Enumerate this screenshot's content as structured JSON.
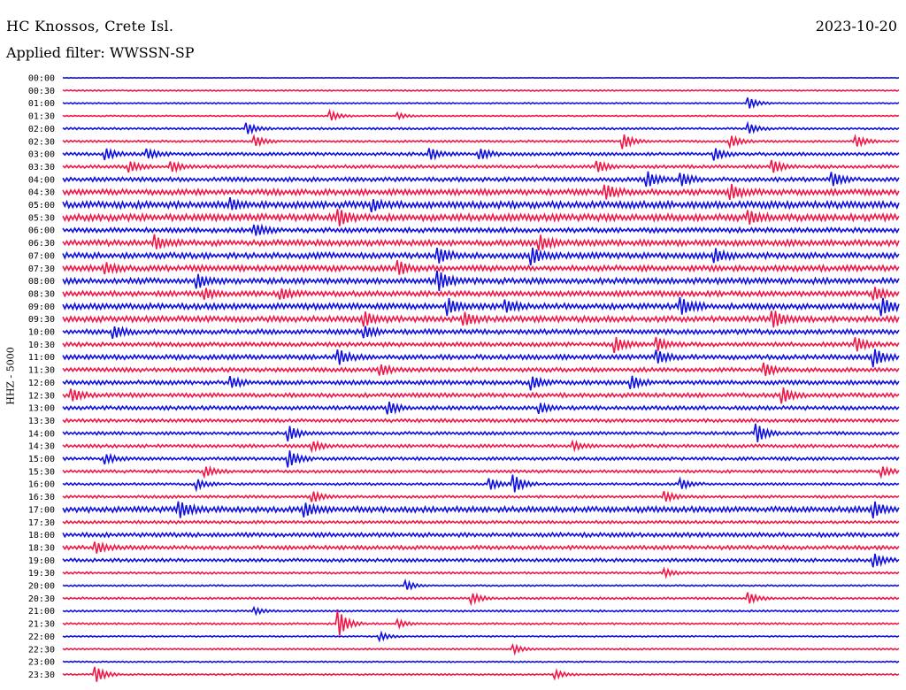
{
  "header": {
    "station": "HC Knossos, Crete Isl.",
    "date": "2023-10-20",
    "filter": "Applied filter: WWSSN-SP"
  },
  "colors": {
    "even_line": "#1010e0",
    "odd_line": "#f01848"
  },
  "chart_data": {
    "type": "line",
    "title": "HC Knossos, Crete Isl.",
    "ylabel": "HHZ - 5000",
    "xlabel": "",
    "grid": false,
    "row_labels": [
      "00:00",
      "00:30",
      "01:00",
      "01:30",
      "02:00",
      "02:30",
      "03:00",
      "03:30",
      "04:00",
      "04:30",
      "05:00",
      "05:30",
      "06:00",
      "06:30",
      "07:00",
      "07:30",
      "08:00",
      "08:30",
      "09:00",
      "09:30",
      "10:00",
      "10:30",
      "11:00",
      "11:30",
      "12:00",
      "12:30",
      "13:00",
      "13:30",
      "14:00",
      "14:30",
      "15:00",
      "15:30",
      "16:00",
      "16:30",
      "17:00",
      "17:30",
      "18:00",
      "18:30",
      "19:00",
      "19:30",
      "20:00",
      "20:30",
      "21:00",
      "21:30",
      "22:00",
      "22:30",
      "23:00",
      "23:30"
    ],
    "row_noise": [
      0.2,
      0.5,
      0.5,
      0.5,
      0.8,
      0.8,
      1.2,
      1.2,
      1.6,
      2.2,
      2.6,
      2.6,
      1.8,
      2.2,
      2.2,
      2.2,
      2.2,
      2.0,
      2.2,
      2.2,
      1.8,
      1.6,
      1.8,
      1.6,
      1.6,
      1.6,
      1.5,
      1.3,
      1.2,
      1.2,
      1.2,
      1.1,
      0.9,
      1.0,
      2.2,
      1.1,
      1.6,
      1.5,
      1.3,
      0.8,
      0.6,
      0.8,
      0.7,
      0.7,
      0.5,
      0.6,
      0.5,
      0.6
    ],
    "events": [
      {
        "row": 2,
        "t": 0.82,
        "amp": 6
      },
      {
        "row": 3,
        "t": 0.32,
        "amp": 5
      },
      {
        "row": 3,
        "t": 0.4,
        "amp": 3
      },
      {
        "row": 4,
        "t": 0.22,
        "amp": 6
      },
      {
        "row": 4,
        "t": 0.82,
        "amp": 5
      },
      {
        "row": 5,
        "t": 0.23,
        "amp": 5
      },
      {
        "row": 5,
        "t": 0.67,
        "amp": 8
      },
      {
        "row": 5,
        "t": 0.8,
        "amp": 5
      },
      {
        "row": 5,
        "t": 0.95,
        "amp": 5
      },
      {
        "row": 6,
        "t": 0.05,
        "amp": 6
      },
      {
        "row": 6,
        "t": 0.1,
        "amp": 5
      },
      {
        "row": 6,
        "t": 0.44,
        "amp": 5
      },
      {
        "row": 6,
        "t": 0.5,
        "amp": 5
      },
      {
        "row": 6,
        "t": 0.78,
        "amp": 6
      },
      {
        "row": 7,
        "t": 0.08,
        "amp": 5
      },
      {
        "row": 7,
        "t": 0.13,
        "amp": 5
      },
      {
        "row": 7,
        "t": 0.64,
        "amp": 5
      },
      {
        "row": 7,
        "t": 0.85,
        "amp": 6
      },
      {
        "row": 8,
        "t": 0.7,
        "amp": 7
      },
      {
        "row": 8,
        "t": 0.74,
        "amp": 6
      },
      {
        "row": 8,
        "t": 0.92,
        "amp": 7
      },
      {
        "row": 9,
        "t": 0.65,
        "amp": 6
      },
      {
        "row": 9,
        "t": 0.8,
        "amp": 7
      },
      {
        "row": 10,
        "t": 0.2,
        "amp": 5
      },
      {
        "row": 10,
        "t": 0.37,
        "amp": 5
      },
      {
        "row": 11,
        "t": 0.33,
        "amp": 7
      },
      {
        "row": 11,
        "t": 0.82,
        "amp": 6
      },
      {
        "row": 12,
        "t": 0.23,
        "amp": 5
      },
      {
        "row": 13,
        "t": 0.11,
        "amp": 7
      },
      {
        "row": 13,
        "t": 0.57,
        "amp": 7
      },
      {
        "row": 14,
        "t": 0.45,
        "amp": 7
      },
      {
        "row": 14,
        "t": 0.56,
        "amp": 8
      },
      {
        "row": 14,
        "t": 0.78,
        "amp": 6
      },
      {
        "row": 15,
        "t": 0.05,
        "amp": 5
      },
      {
        "row": 15,
        "t": 0.4,
        "amp": 7
      },
      {
        "row": 16,
        "t": 0.16,
        "amp": 7
      },
      {
        "row": 16,
        "t": 0.45,
        "amp": 9
      },
      {
        "row": 17,
        "t": 0.17,
        "amp": 5
      },
      {
        "row": 17,
        "t": 0.26,
        "amp": 5
      },
      {
        "row": 17,
        "t": 0.97,
        "amp": 6
      },
      {
        "row": 18,
        "t": 0.46,
        "amp": 8
      },
      {
        "row": 18,
        "t": 0.53,
        "amp": 6
      },
      {
        "row": 18,
        "t": 0.74,
        "amp": 8
      },
      {
        "row": 18,
        "t": 0.98,
        "amp": 8
      },
      {
        "row": 19,
        "t": 0.36,
        "amp": 7
      },
      {
        "row": 19,
        "t": 0.48,
        "amp": 6
      },
      {
        "row": 19,
        "t": 0.85,
        "amp": 8
      },
      {
        "row": 20,
        "t": 0.06,
        "amp": 6
      },
      {
        "row": 20,
        "t": 0.36,
        "amp": 6
      },
      {
        "row": 21,
        "t": 0.66,
        "amp": 8
      },
      {
        "row": 21,
        "t": 0.71,
        "amp": 7
      },
      {
        "row": 21,
        "t": 0.95,
        "amp": 6
      },
      {
        "row": 22,
        "t": 0.33,
        "amp": 7
      },
      {
        "row": 22,
        "t": 0.71,
        "amp": 7
      },
      {
        "row": 22,
        "t": 0.97,
        "amp": 9
      },
      {
        "row": 23,
        "t": 0.38,
        "amp": 5
      },
      {
        "row": 23,
        "t": 0.84,
        "amp": 6
      },
      {
        "row": 24,
        "t": 0.2,
        "amp": 6
      },
      {
        "row": 24,
        "t": 0.56,
        "amp": 7
      },
      {
        "row": 24,
        "t": 0.68,
        "amp": 6
      },
      {
        "row": 25,
        "t": 0.01,
        "amp": 6
      },
      {
        "row": 25,
        "t": 0.86,
        "amp": 8
      },
      {
        "row": 26,
        "t": 0.39,
        "amp": 6
      },
      {
        "row": 26,
        "t": 0.57,
        "amp": 5
      },
      {
        "row": 28,
        "t": 0.27,
        "amp": 8
      },
      {
        "row": 28,
        "t": 0.83,
        "amp": 10
      },
      {
        "row": 29,
        "t": 0.3,
        "amp": 4
      },
      {
        "row": 29,
        "t": 0.61,
        "amp": 4
      },
      {
        "row": 30,
        "t": 0.05,
        "amp": 5
      },
      {
        "row": 30,
        "t": 0.27,
        "amp": 9
      },
      {
        "row": 31,
        "t": 0.17,
        "amp": 5
      },
      {
        "row": 31,
        "t": 0.98,
        "amp": 5
      },
      {
        "row": 32,
        "t": 0.16,
        "amp": 5
      },
      {
        "row": 32,
        "t": 0.51,
        "amp": 6
      },
      {
        "row": 32,
        "t": 0.54,
        "amp": 9
      },
      {
        "row": 32,
        "t": 0.74,
        "amp": 5
      },
      {
        "row": 33,
        "t": 0.3,
        "amp": 5
      },
      {
        "row": 33,
        "t": 0.72,
        "amp": 5
      },
      {
        "row": 34,
        "t": 0.14,
        "amp": 7
      },
      {
        "row": 34,
        "t": 0.29,
        "amp": 6
      },
      {
        "row": 34,
        "t": 0.97,
        "amp": 7
      },
      {
        "row": 37,
        "t": 0.04,
        "amp": 5
      },
      {
        "row": 38,
        "t": 0.97,
        "amp": 7
      },
      {
        "row": 39,
        "t": 0.72,
        "amp": 4
      },
      {
        "row": 40,
        "t": 0.41,
        "amp": 5
      },
      {
        "row": 41,
        "t": 0.49,
        "amp": 5
      },
      {
        "row": 41,
        "t": 0.82,
        "amp": 6
      },
      {
        "row": 42,
        "t": 0.23,
        "amp": 3
      },
      {
        "row": 43,
        "t": 0.33,
        "amp": 14
      },
      {
        "row": 43,
        "t": 0.4,
        "amp": 4
      },
      {
        "row": 44,
        "t": 0.38,
        "amp": 4
      },
      {
        "row": 45,
        "t": 0.54,
        "amp": 4
      },
      {
        "row": 47,
        "t": 0.04,
        "amp": 8
      },
      {
        "row": 47,
        "t": 0.59,
        "amp": 4
      }
    ]
  }
}
